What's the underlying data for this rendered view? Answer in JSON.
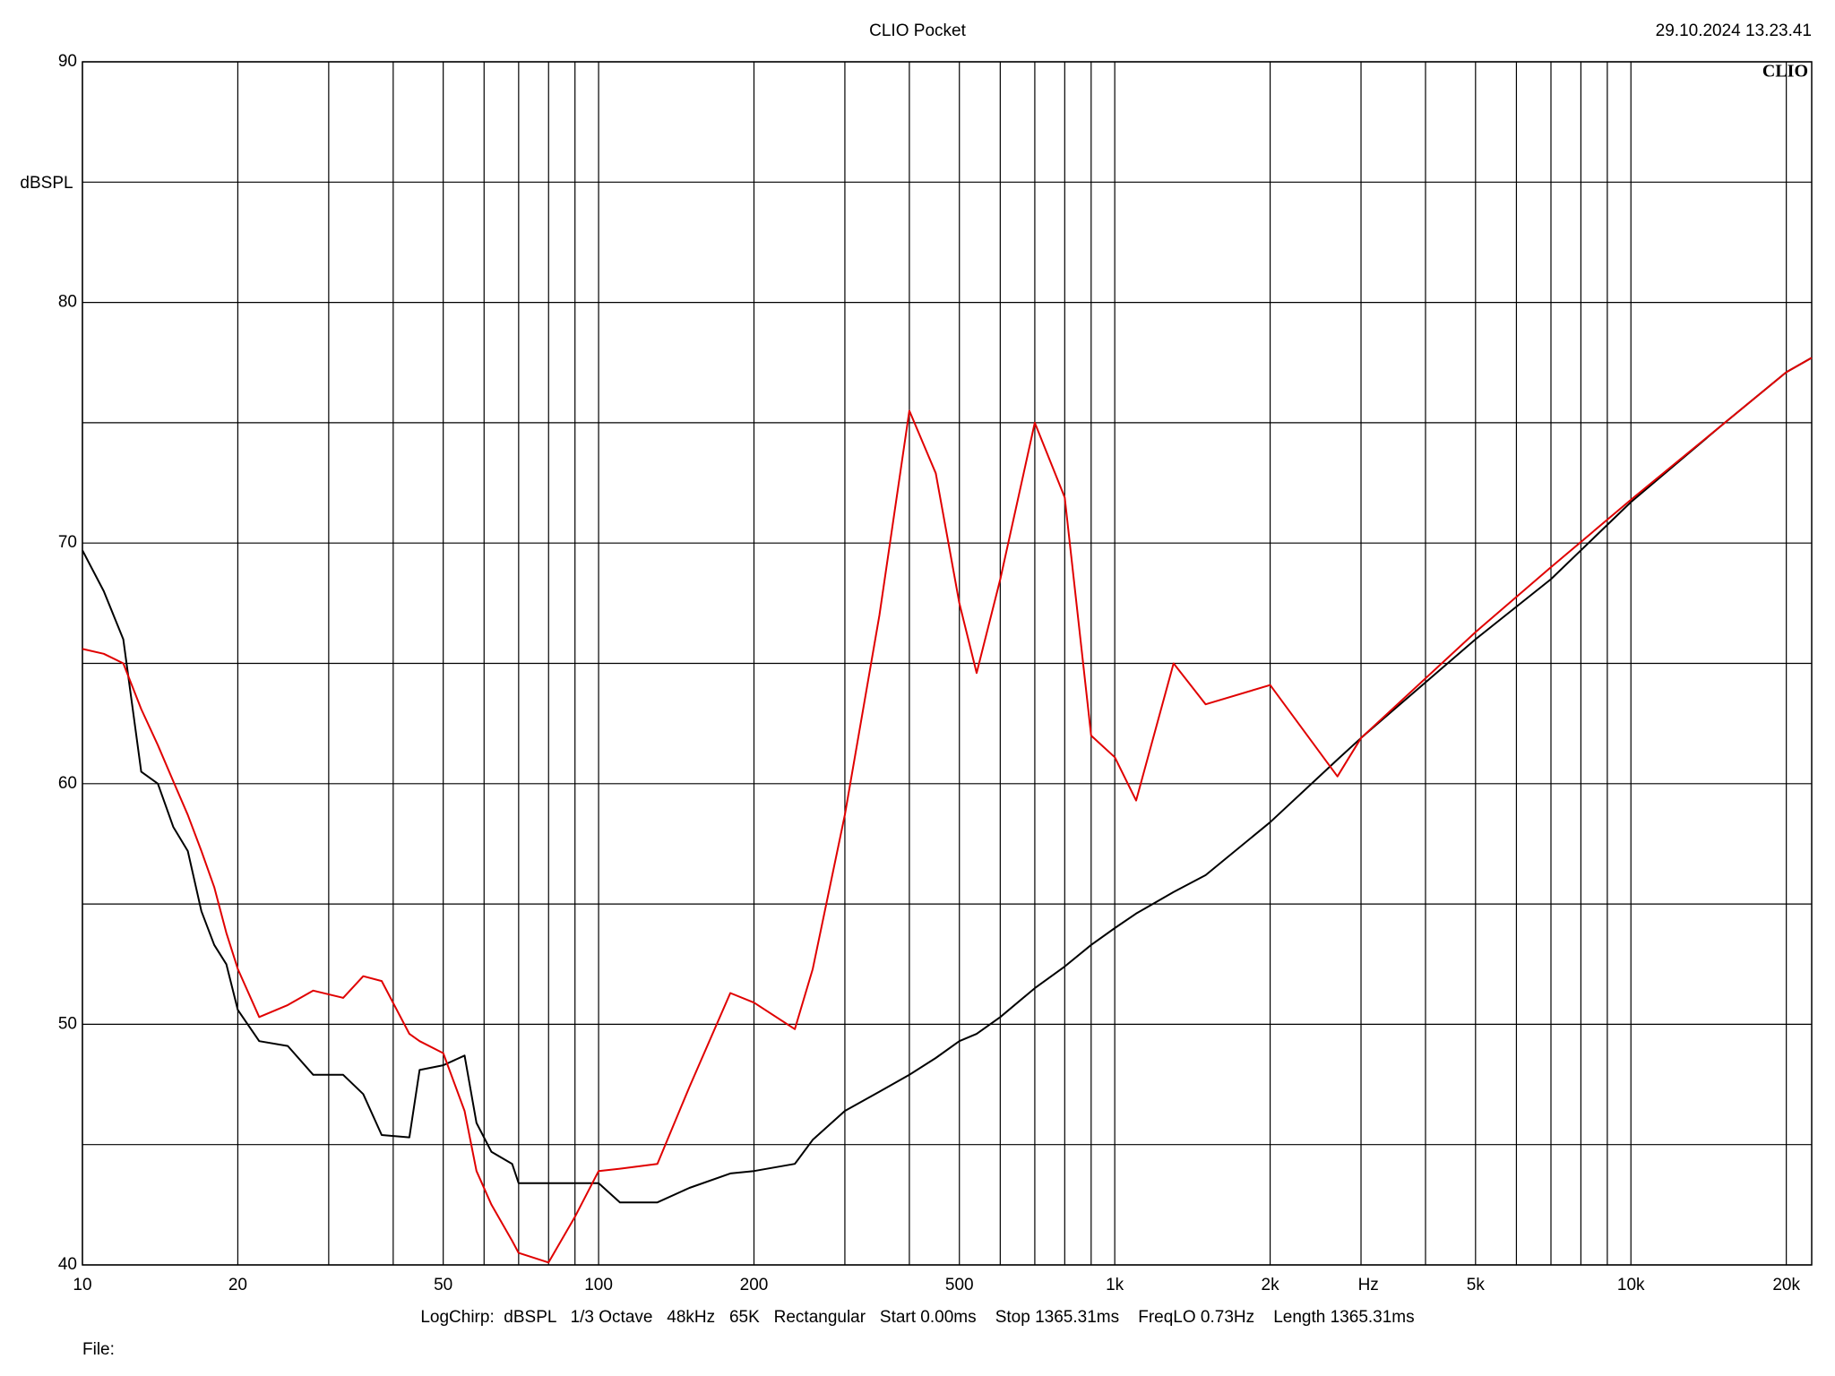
{
  "chart_data": {
    "type": "line",
    "title": "CLIO Pocket",
    "timestamp": "29.10.2024 13.23.41",
    "logo": "CLIO",
    "y_label": "dBSPL",
    "x_unit": "Hz",
    "footer": "LogChirp:  dBSPL   1/3 Octave   48kHz   65K   Rectangular   Start 0.00ms    Stop 1365.31ms    FreqLO 0.73Hz    Length 1365.31ms",
    "file_label": "File:",
    "log_x": true,
    "grid": true,
    "xlim": [
      10,
      22400
    ],
    "ylim": [
      40,
      90
    ],
    "yticks": [
      40,
      50,
      60,
      70,
      80,
      90
    ],
    "yminor": [
      45,
      55,
      65,
      75,
      85
    ],
    "xticks": [
      10,
      20,
      50,
      100,
      200,
      500,
      {
        "value": 1000,
        "label": "1k"
      },
      {
        "value": 2000,
        "label": "2k"
      },
      {
        "value": 5000,
        "label": "5k"
      },
      {
        "value": 10000,
        "label": "10k"
      },
      {
        "value": 20000,
        "label": "20k"
      }
    ],
    "xminor": [
      30,
      40,
      60,
      70,
      80,
      90,
      300,
      400,
      600,
      700,
      800,
      900,
      3000,
      4000,
      6000,
      7000,
      8000,
      9000
    ],
    "x": [
      10,
      11,
      12,
      13,
      14,
      15,
      16,
      17,
      18,
      19,
      20,
      22,
      25,
      28,
      32,
      35,
      38,
      43,
      45,
      50,
      55,
      58,
      62,
      68,
      70,
      80,
      90,
      100,
      110,
      130,
      150,
      180,
      200,
      240,
      260,
      300,
      350,
      400,
      450,
      500,
      540,
      600,
      700,
      800,
      900,
      1000,
      1100,
      1300,
      1500,
      2000,
      2700,
      3000,
      5000,
      7000,
      10000,
      15000,
      20000,
      22400
    ],
    "series": [
      {
        "color": "#000000",
        "values": [
          69.7,
          68.0,
          66.0,
          60.5,
          60.0,
          58.2,
          57.2,
          54.7,
          53.3,
          52.5,
          50.6,
          49.3,
          49.1,
          47.9,
          47.9,
          47.1,
          45.4,
          45.3,
          48.1,
          48.3,
          48.7,
          45.9,
          44.7,
          44.2,
          43.4,
          43.4,
          43.4,
          43.4,
          42.6,
          42.6,
          43.2,
          43.8,
          43.9,
          44.2,
          45.2,
          46.4,
          47.2,
          47.9,
          48.6,
          49.3,
          49.6,
          50.3,
          51.5,
          52.4,
          53.3,
          54.0,
          54.6,
          55.5,
          56.2,
          58.4,
          61.0,
          61.9,
          66.0,
          68.5,
          71.7,
          74.9,
          77.1,
          77.7
        ]
      },
      {
        "color": "#e00000",
        "values": [
          65.6,
          65.4,
          65.0,
          63.1,
          61.6,
          60.1,
          58.7,
          57.2,
          55.7,
          53.8,
          52.3,
          50.3,
          50.8,
          51.4,
          51.1,
          52.0,
          51.8,
          49.6,
          49.3,
          48.8,
          46.4,
          43.9,
          42.5,
          41.0,
          40.5,
          40.1,
          42.0,
          43.9,
          44.0,
          44.2,
          47.4,
          51.3,
          50.9,
          49.8,
          52.3,
          58.7,
          67.0,
          75.5,
          72.9,
          67.5,
          64.6,
          68.5,
          75.0,
          71.9,
          62.0,
          61.1,
          59.3,
          65.0,
          63.3,
          64.1,
          60.3,
          61.9,
          66.3,
          69.0,
          71.8,
          74.9,
          77.1,
          77.7
        ]
      }
    ]
  }
}
